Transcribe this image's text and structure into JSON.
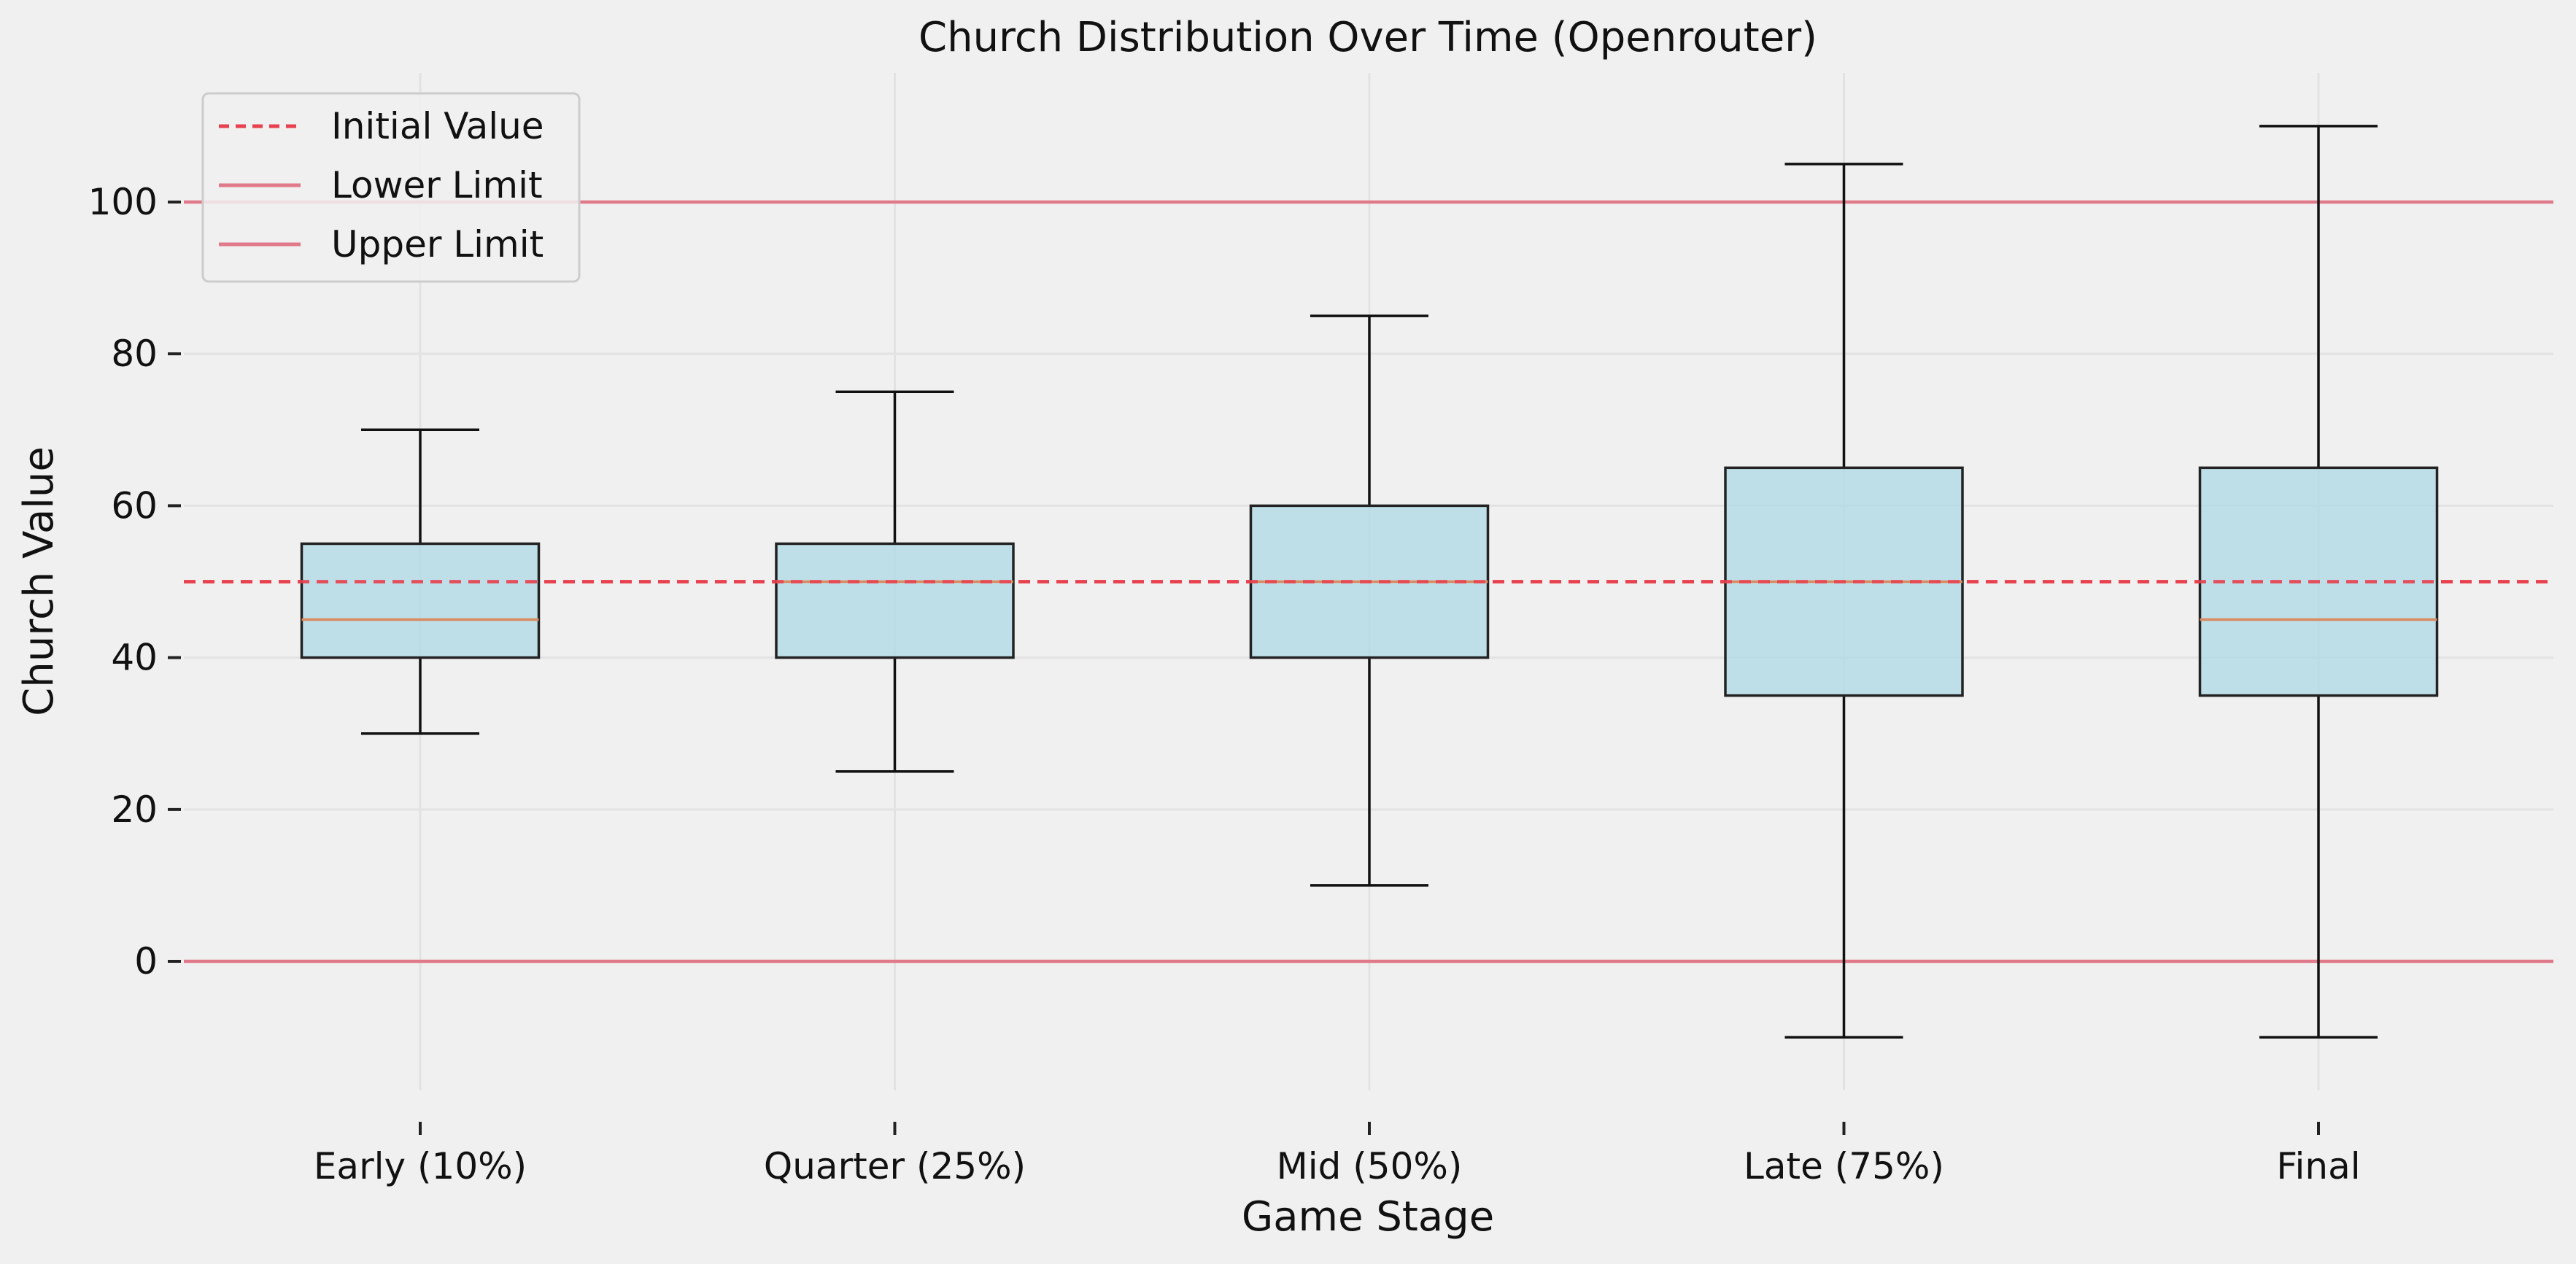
{
  "chart_data": {
    "type": "box",
    "title": "Church Distribution Over Time (Openrouter)",
    "xlabel": "Game Stage",
    "ylabel": "Church Value",
    "ylim": [
      -17,
      117
    ],
    "yticks": [
      0,
      20,
      40,
      60,
      80,
      100
    ],
    "grid": true,
    "legend_position": "top-left",
    "categories": [
      "Early (10%)",
      "Quarter (25%)",
      "Mid (50%)",
      "Late (75%)",
      "Final"
    ],
    "boxes": [
      {
        "min": 30,
        "q1": 40,
        "median": 45,
        "q3": 55,
        "max": 70
      },
      {
        "min": 25,
        "q1": 40,
        "median": 50,
        "q3": 55,
        "max": 75
      },
      {
        "min": 10,
        "q1": 40,
        "median": 50,
        "q3": 60,
        "max": 85
      },
      {
        "min": -10,
        "q1": 35,
        "median": 50,
        "q3": 65,
        "max": 105
      },
      {
        "min": -10,
        "q1": 35,
        "median": 45,
        "q3": 65,
        "max": 110
      }
    ],
    "reference_lines": [
      {
        "name": "Initial Value",
        "value": 50,
        "style": "dashed",
        "color": "#e8414e"
      },
      {
        "name": "Lower Limit",
        "value": 0,
        "style": "solid",
        "color": "#e07a8a"
      },
      {
        "name": "Upper Limit",
        "value": 100,
        "style": "solid",
        "color": "#e07a8a"
      }
    ],
    "colors": {
      "box_fill": "#add8e6",
      "box_edge": "#222222",
      "median": "#d98a5e",
      "grid": "#e2e2e2",
      "background": "#f0f0f0"
    }
  }
}
